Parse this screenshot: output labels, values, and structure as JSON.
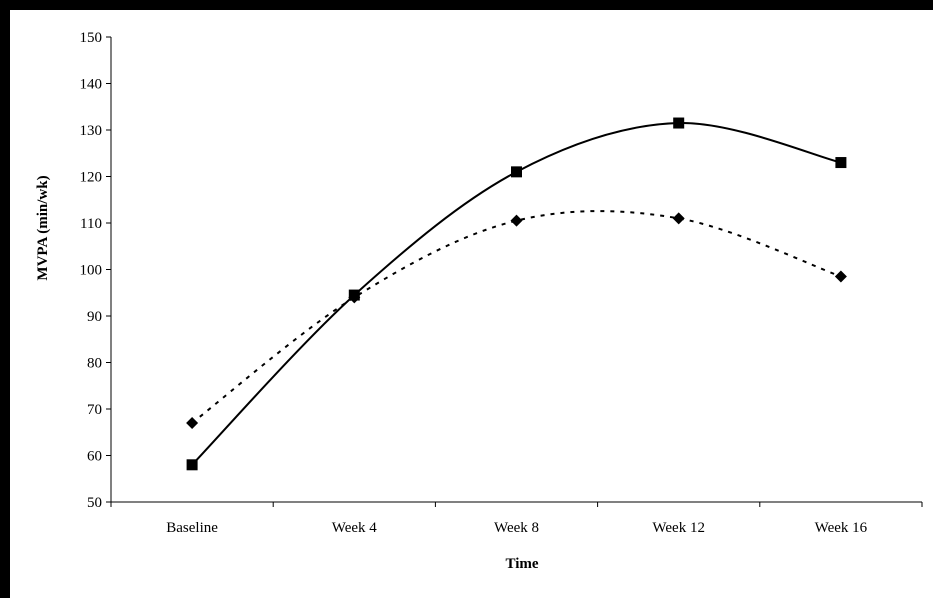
{
  "chart_data": {
    "type": "line",
    "title": "",
    "xlabel": "Time",
    "ylabel": "MVPA (min/wk)",
    "categories": [
      "Baseline",
      "Week 4",
      "Week 8",
      "Week 12",
      "Week 16"
    ],
    "ylim": [
      50,
      150
    ],
    "yticks": [
      "50",
      "60",
      "70",
      "80",
      "90",
      "100",
      "110",
      "120",
      "130",
      "140",
      "150"
    ],
    "grid": false,
    "legend": "none",
    "series": [
      {
        "values": [
          58,
          94.5,
          121,
          131.5,
          123
        ],
        "line_style": "solid",
        "marker": "square",
        "color": "#000000"
      },
      {
        "values": [
          67,
          94,
          110.5,
          111,
          98.5
        ],
        "line_style": "dotted",
        "marker": "diamond",
        "color": "#000000"
      }
    ]
  }
}
